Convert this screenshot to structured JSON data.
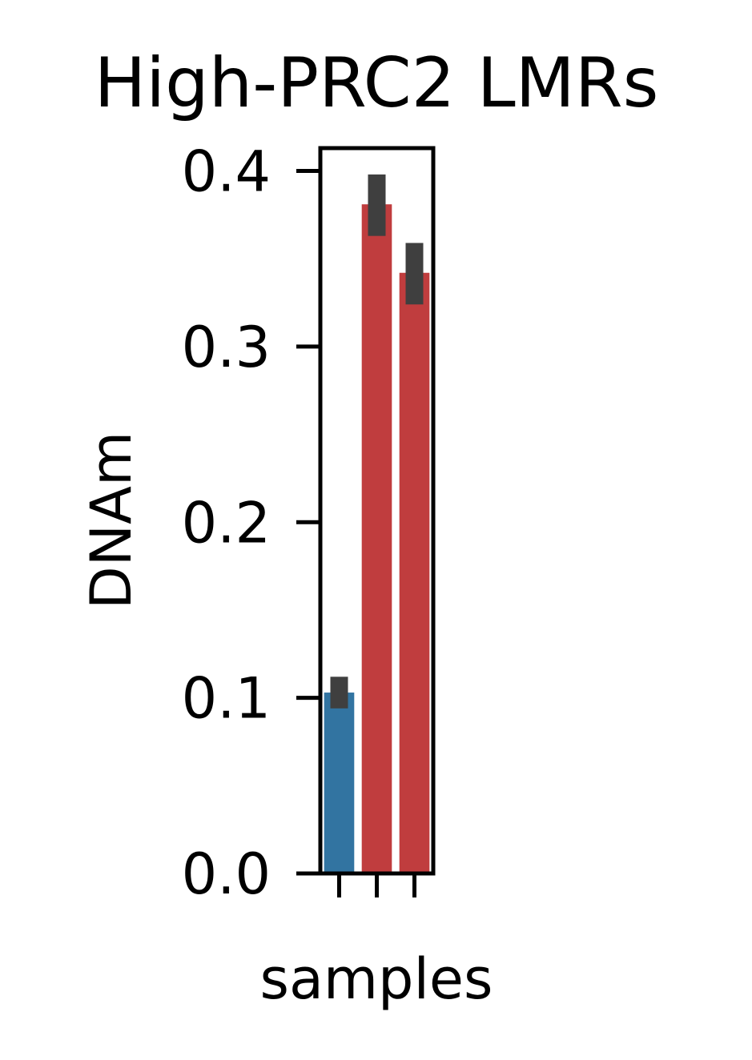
{
  "chart_data": {
    "type": "bar",
    "title": "High-PRC2 LMRs",
    "xlabel": "samples",
    "ylabel": "DNAm",
    "ylim": [
      0,
      0.413
    ],
    "yticks": [
      "0.0",
      "0.1",
      "0.2",
      "0.3",
      "0.4"
    ],
    "ytick_values": [
      0.0,
      0.1,
      0.2,
      0.3,
      0.4
    ],
    "categories": [
      "",
      "",
      ""
    ],
    "values": [
      0.103,
      0.381,
      0.342
    ],
    "error_low": [
      0.094,
      0.363,
      0.324
    ],
    "error_high": [
      0.112,
      0.398,
      0.359
    ],
    "colors": [
      "#3274a1",
      "#c03d3e",
      "#c03d3e"
    ],
    "error_color": "#3f3f3f",
    "grid": false,
    "legend": "none"
  }
}
